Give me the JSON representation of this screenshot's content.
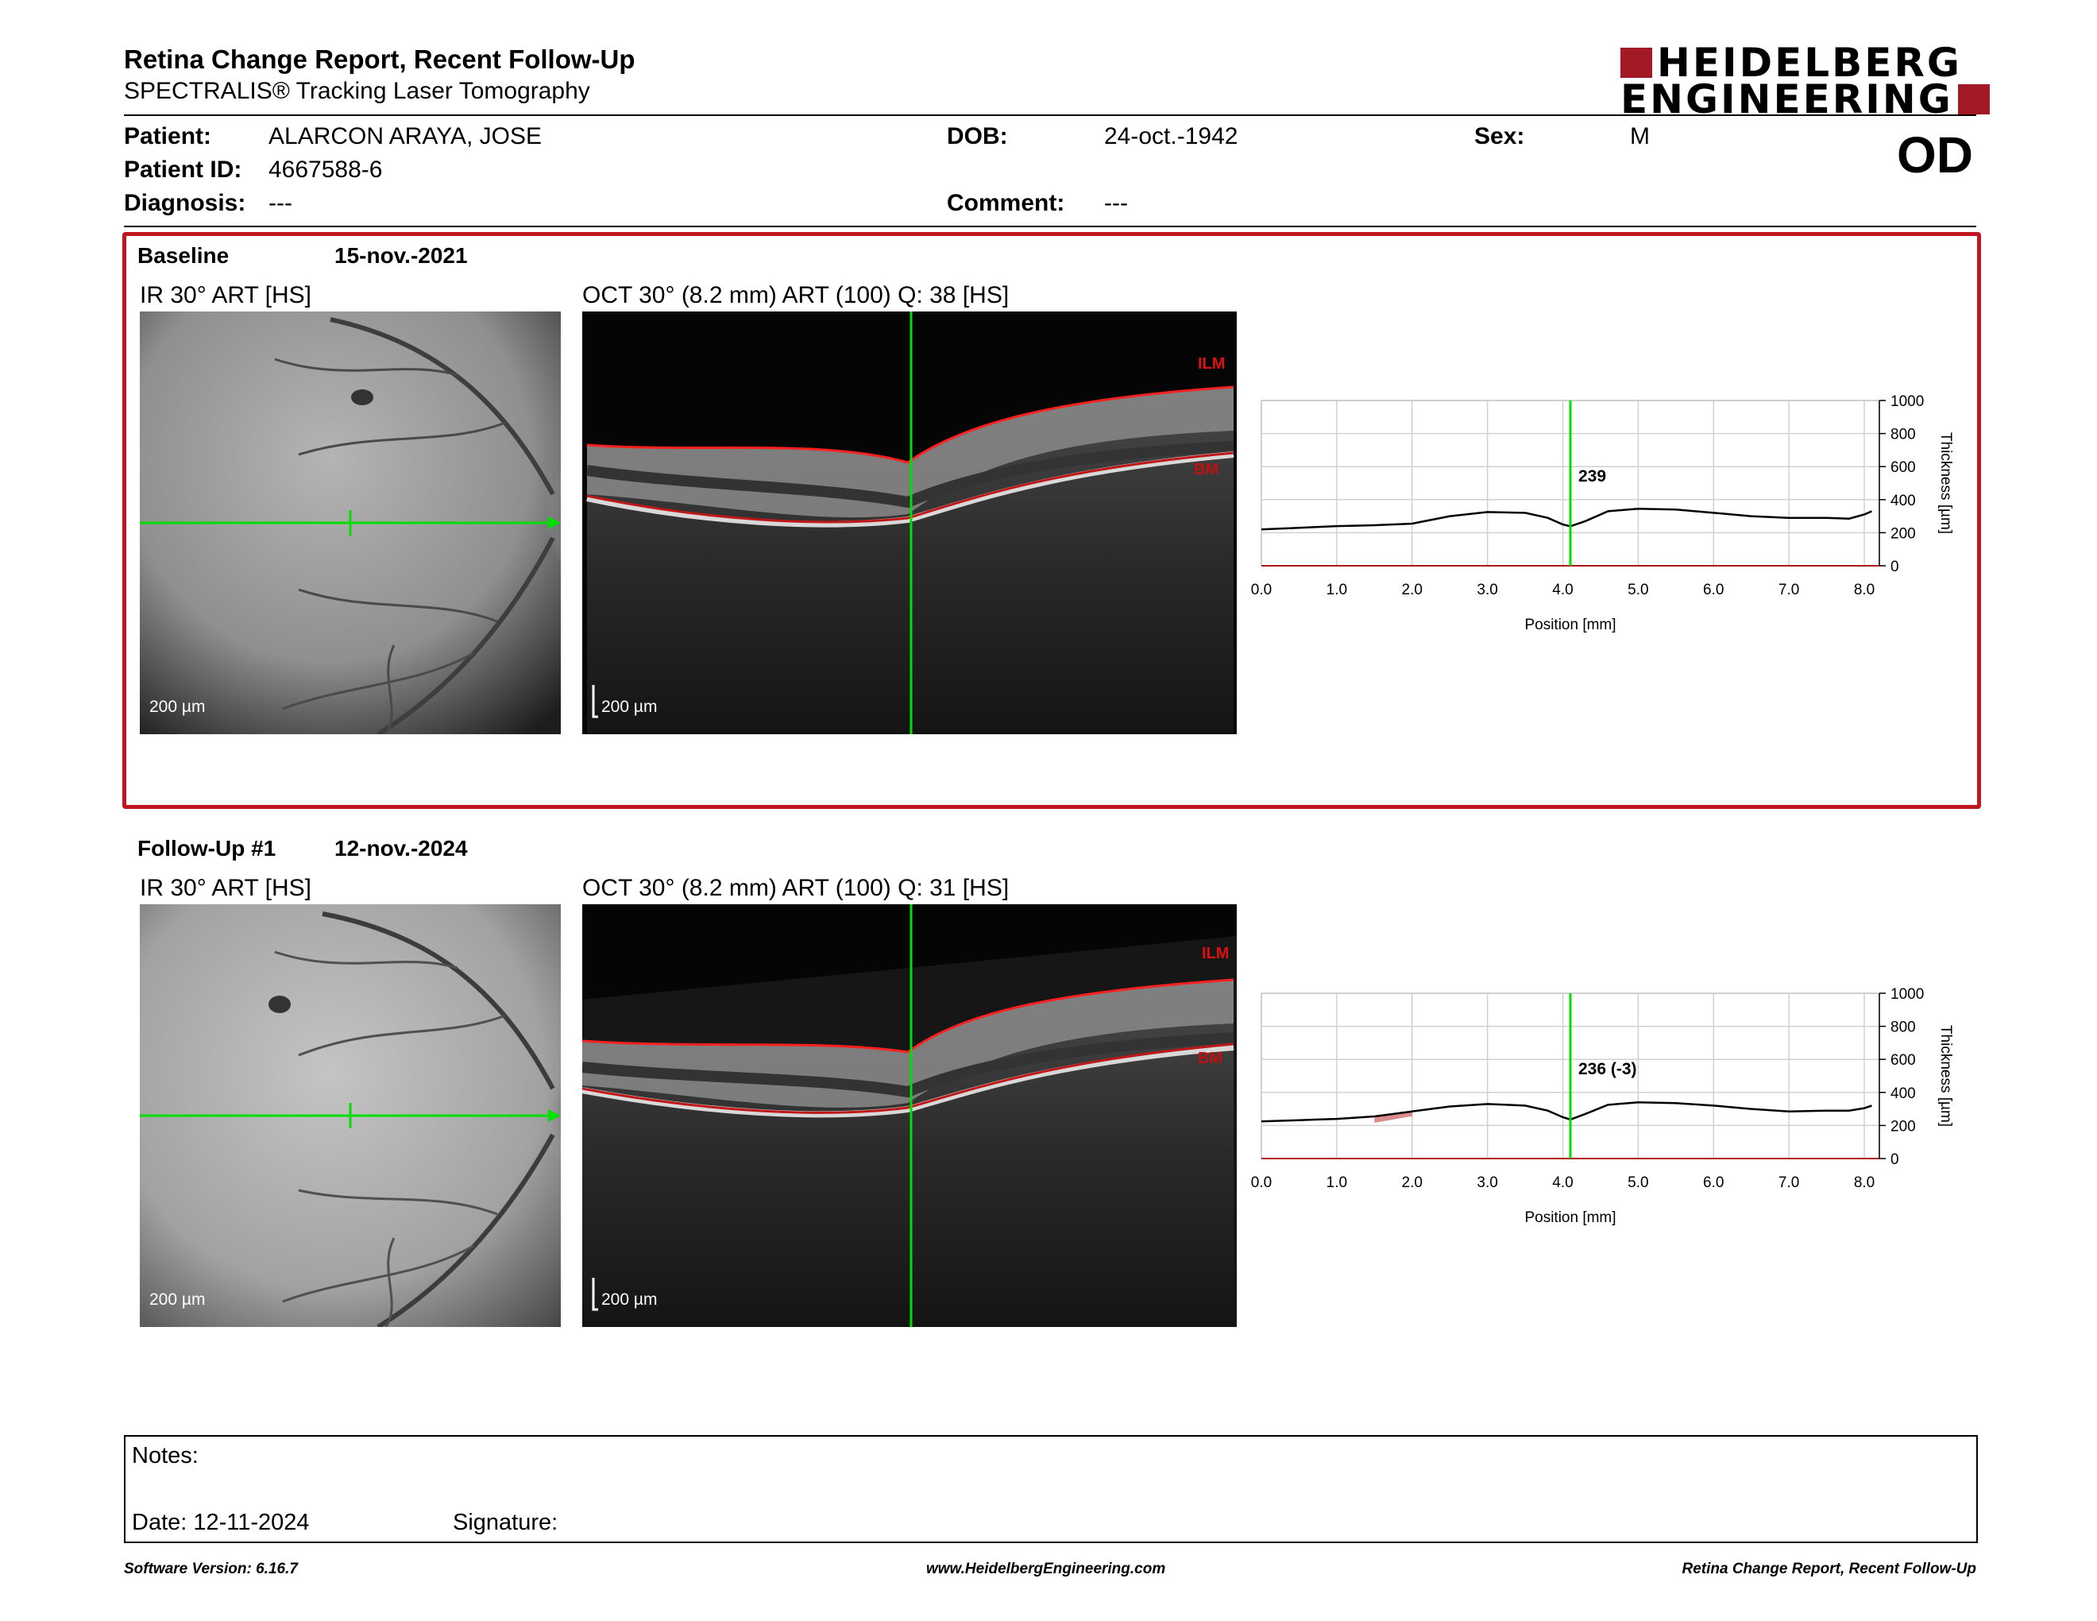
{
  "header": {
    "title": "Retina Change Report, Recent Follow-Up",
    "subtitle": "SPECTRALIS® Tracking Laser Tomography",
    "logo_line1": "HEIDELBERG",
    "logo_line2": "ENGINEERING",
    "brand_color": "#a31a27"
  },
  "patient": {
    "patient_label": "Patient:",
    "patient_value": "ALARCON ARAYA, JOSE",
    "id_label": "Patient ID:",
    "id_value": "4667588-6",
    "diag_label": "Diagnosis:",
    "diag_value": "---",
    "dob_label": "DOB:",
    "dob_value": "24-oct.-1942",
    "comment_label": "Comment:",
    "comment_value": "---",
    "sex_label": "Sex:",
    "sex_value": "M",
    "eye": "OD"
  },
  "baseline": {
    "label": "Baseline",
    "date": "15-nov.-2021",
    "ir_title": "IR 30° ART [HS]",
    "oct_title": "OCT 30° (8.2 mm) ART (100) Q: 38 [HS]",
    "scale": "200 µm",
    "ilm": "ILM",
    "bm": "BM"
  },
  "followup": {
    "label": "Follow-Up #1",
    "date": "12-nov.-2024",
    "ir_title": "IR 30° ART [HS]",
    "oct_title": "OCT 30° (8.2 mm) ART (100) Q: 31 [HS]",
    "scale": "200 µm",
    "ilm": "ILM",
    "bm": "BM"
  },
  "chart_data": [
    {
      "type": "line",
      "xlabel": "Position [mm]",
      "ylabel": "Thickness [µm]",
      "xlim": [
        0,
        8.2
      ],
      "ylim": [
        0,
        1000
      ],
      "x_ticks": [
        "0.0",
        "1.0",
        "2.0",
        "3.0",
        "4.0",
        "5.0",
        "6.0",
        "7.0",
        "8.0"
      ],
      "y_ticks": [
        "0",
        "200",
        "400",
        "600",
        "800",
        "1000"
      ],
      "marker_x": 4.1,
      "marker_label": "239",
      "series": [
        {
          "x": [
            0,
            0.5,
            1,
            1.5,
            2,
            2.5,
            3,
            3.5,
            3.8,
            4.0,
            4.1,
            4.3,
            4.6,
            5.0,
            5.5,
            6.0,
            6.5,
            7.0,
            7.5,
            7.8,
            8.0,
            8.1
          ],
          "values": [
            220,
            230,
            240,
            245,
            255,
            300,
            325,
            320,
            290,
            250,
            239,
            270,
            330,
            345,
            340,
            320,
            300,
            290,
            290,
            285,
            310,
            330
          ]
        }
      ]
    },
    {
      "type": "line",
      "xlabel": "Position [mm]",
      "ylabel": "Thickness [µm]",
      "xlim": [
        0,
        8.2
      ],
      "ylim": [
        0,
        1000
      ],
      "x_ticks": [
        "0.0",
        "1.0",
        "2.0",
        "3.0",
        "4.0",
        "5.0",
        "6.0",
        "7.0",
        "8.0"
      ],
      "y_ticks": [
        "0",
        "200",
        "400",
        "600",
        "800",
        "1000"
      ],
      "marker_x": 4.1,
      "marker_label": "236 (-3)",
      "series": [
        {
          "x": [
            0,
            0.5,
            1,
            1.5,
            2,
            2.5,
            3,
            3.5,
            3.8,
            4.0,
            4.1,
            4.3,
            4.6,
            5.0,
            5.5,
            6.0,
            6.5,
            7.0,
            7.5,
            7.8,
            8.0,
            8.1
          ],
          "values": [
            225,
            232,
            240,
            255,
            285,
            315,
            330,
            320,
            290,
            250,
            236,
            270,
            325,
            340,
            335,
            320,
            300,
            285,
            290,
            290,
            305,
            320
          ]
        }
      ]
    }
  ],
  "notes": {
    "notes_label": "Notes:",
    "date_label": "Date: 12-11-2024",
    "signature_label": "Signature:"
  },
  "footer": {
    "version": "Software Version: 6.16.7",
    "website": "www.HeidelbergEngineering.com",
    "report": "Retina Change Report, Recent Follow-Up"
  }
}
